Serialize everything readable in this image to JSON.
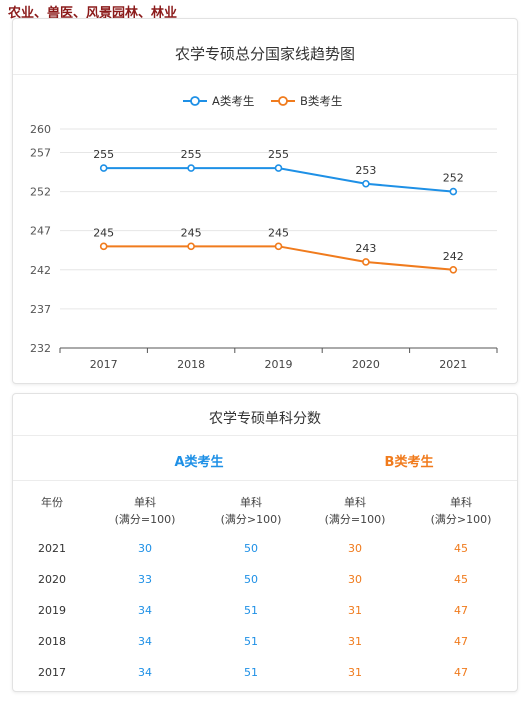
{
  "page": {
    "title": "农业、兽医、风景园林、林业"
  },
  "chart_data": {
    "type": "line",
    "title": "农学专硕总分国家线趋势图",
    "categories": [
      "2017",
      "2018",
      "2019",
      "2020",
      "2021"
    ],
    "yticks": [
      232,
      237,
      242,
      247,
      252,
      257,
      260
    ],
    "ylim": [
      232,
      260
    ],
    "grid": true,
    "legend_position": "top",
    "series": [
      {
        "name": "A类考生",
        "color": "#1e90e6",
        "values": [
          255,
          255,
          255,
          253,
          252
        ]
      },
      {
        "name": "B类考生",
        "color": "#f07b1d",
        "values": [
          245,
          245,
          245,
          243,
          242
        ]
      }
    ]
  },
  "table": {
    "title": "农学专硕单科分数",
    "group_a": "A类考生",
    "group_b": "B类考生",
    "col_year": "年份",
    "col_line1": "单科",
    "col_le100": "(满分=100)",
    "col_gt100": "(满分>100)",
    "rows": [
      {
        "year": "2021",
        "a1": "30",
        "a2": "50",
        "b1": "30",
        "b2": "45"
      },
      {
        "year": "2020",
        "a1": "33",
        "a2": "50",
        "b1": "30",
        "b2": "45"
      },
      {
        "year": "2019",
        "a1": "34",
        "a2": "51",
        "b1": "31",
        "b2": "47"
      },
      {
        "year": "2018",
        "a1": "34",
        "a2": "51",
        "b1": "31",
        "b2": "47"
      },
      {
        "year": "2017",
        "a1": "34",
        "a2": "51",
        "b1": "31",
        "b2": "47"
      }
    ]
  }
}
